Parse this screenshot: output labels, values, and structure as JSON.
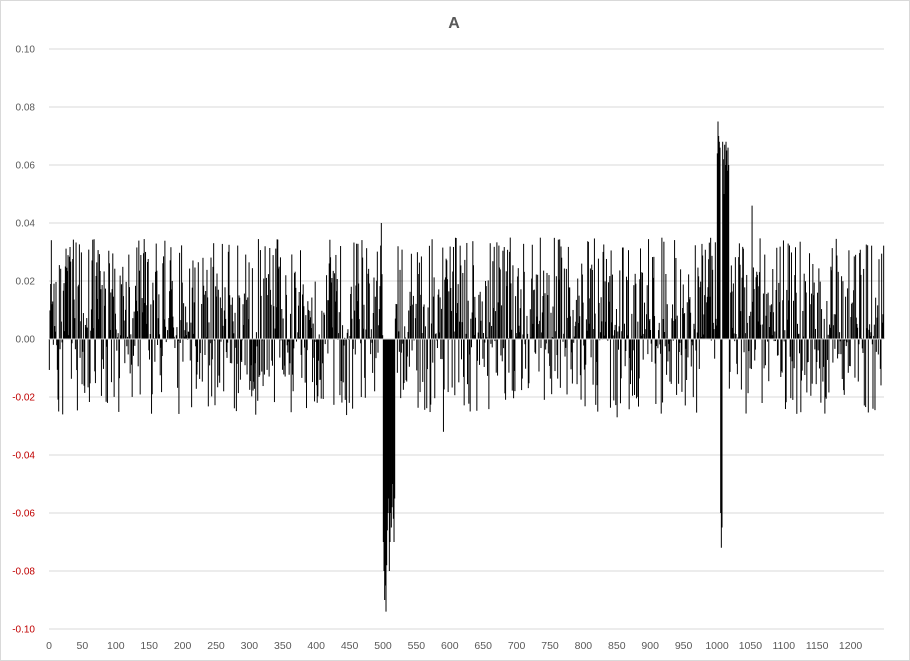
{
  "chart_data": {
    "type": "bar",
    "title": "A",
    "xlabel": "",
    "ylabel": "",
    "ylim": [
      -0.1,
      0.1
    ],
    "xlim": [
      0,
      1250
    ],
    "yticks": [
      0.1,
      0.08,
      0.06,
      0.04,
      0.02,
      0.0,
      -0.02,
      -0.04,
      -0.06,
      -0.08,
      -0.1
    ],
    "ytick_labels": [
      "0.10",
      "0.08",
      "0.06",
      "0.04",
      "0.02",
      "0.00",
      "-0.02",
      "-0.04",
      "-0.06",
      "-0.08",
      "-0.10"
    ],
    "xticks": [
      0,
      50,
      100,
      150,
      200,
      250,
      300,
      350,
      400,
      450,
      500,
      550,
      600,
      650,
      700,
      750,
      800,
      850,
      900,
      950,
      1000,
      1050,
      1100,
      1150,
      1200
    ],
    "negative_label_color": "#c00000",
    "bar_color": "#000000",
    "grid": true,
    "legend": "none",
    "n_points": 1250,
    "noise_amplitude": 0.035,
    "events": [
      {
        "start": 500,
        "end": 517,
        "values": [
          -0.07,
          -0.08,
          -0.09,
          -0.085,
          -0.094,
          -0.078,
          -0.066,
          -0.06,
          -0.055,
          -0.08,
          -0.07,
          -0.06,
          -0.065,
          -0.058,
          -0.05,
          -0.062,
          -0.07,
          -0.055
        ]
      },
      {
        "start": 1000,
        "end": 1017,
        "values": [
          0.064,
          0.075,
          0.07,
          0.068,
          0.066,
          -0.06,
          -0.072,
          -0.065,
          0.068,
          0.062,
          0.05,
          0.067,
          0.06,
          0.068,
          0.065,
          0.058,
          0.066,
          0.06
        ]
      }
    ],
    "notable_points": [
      {
        "x": 497,
        "y": 0.04
      },
      {
        "x": 1052,
        "y": 0.046
      },
      {
        "x": 20,
        "y": -0.026
      },
      {
        "x": 850,
        "y": -0.027
      },
      {
        "x": 590,
        "y": -0.032
      },
      {
        "x": 1245,
        "y": -0.016
      }
    ]
  }
}
